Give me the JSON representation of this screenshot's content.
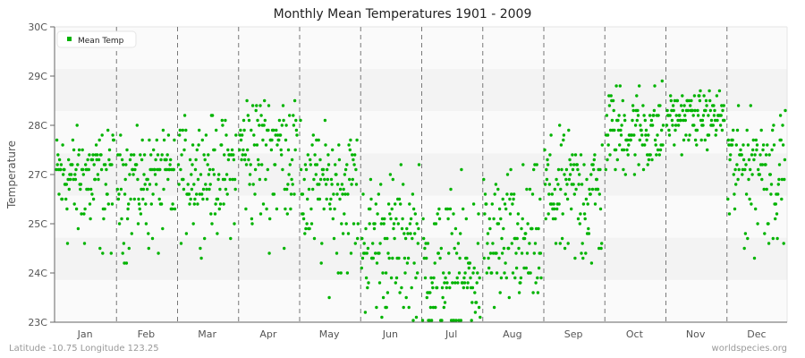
{
  "chart_data": {
    "type": "scatter",
    "title": "Monthly Mean Temperatures 1901 - 2009",
    "xlabel": "",
    "ylabel": "Temperature",
    "categories": [
      "Jan",
      "Feb",
      "Mar",
      "Apr",
      "May",
      "Jun",
      "Jul",
      "Aug",
      "Sep",
      "Oct",
      "Nov",
      "Dec"
    ],
    "y_tick_labels": [
      "30C",
      "29C",
      "28C",
      "27C",
      "25C",
      "24C",
      "23C"
    ],
    "ylim": [
      23,
      30
    ],
    "grid": {
      "vertical_dashed_month_separators": true,
      "alternating_horizontal_bands": true
    },
    "legend": {
      "position": "top-left",
      "entries": [
        "Mean Temp"
      ]
    },
    "series": [
      {
        "name": "Mean Temp",
        "color": "#00b300",
        "years": "1901-2009",
        "monthly_summary": [
          {
            "month": "Jan",
            "min": 24.7,
            "max": 28.3,
            "typical": 27.0
          },
          {
            "month": "Feb",
            "min": 24.6,
            "max": 28.1,
            "typical": 27.0
          },
          {
            "month": "Mar",
            "min": 25.2,
            "max": 28.6,
            "typical": 27.1
          },
          {
            "month": "Apr",
            "min": 25.0,
            "max": 29.2,
            "typical": 27.6
          },
          {
            "month": "May",
            "min": 24.2,
            "max": 28.4,
            "typical": 26.8
          },
          {
            "month": "Jun",
            "min": 23.5,
            "max": 27.8,
            "typical": 25.6
          },
          {
            "month": "Jul",
            "min": 23.2,
            "max": 27.5,
            "typical": 24.9
          },
          {
            "month": "Aug",
            "min": 23.6,
            "max": 27.8,
            "typical": 25.5
          },
          {
            "month": "Sep",
            "min": 24.1,
            "max": 28.3,
            "typical": 26.7
          },
          {
            "month": "Oct",
            "min": 26.5,
            "max": 29.3,
            "typical": 27.9
          },
          {
            "month": "Nov",
            "min": 27.3,
            "max": 28.9,
            "typical": 28.2
          },
          {
            "month": "Dec",
            "min": 24.7,
            "max": 28.6,
            "typical": 27.3
          }
        ]
      }
    ]
  },
  "header": {
    "title": "Monthly Mean Temperatures 1901 - 2009"
  },
  "axes": {
    "ylabel": "Temperature"
  },
  "legend": {
    "label": "Mean Temp"
  },
  "footer": {
    "location": "Latitude -10.75 Longitude 123.25",
    "source": "worldspecies.org"
  },
  "colors": {
    "series": "#00b300",
    "band_light": "#fafafa",
    "band_dark": "#f3f3f3",
    "separator": "#777777",
    "axis": "#666666"
  }
}
